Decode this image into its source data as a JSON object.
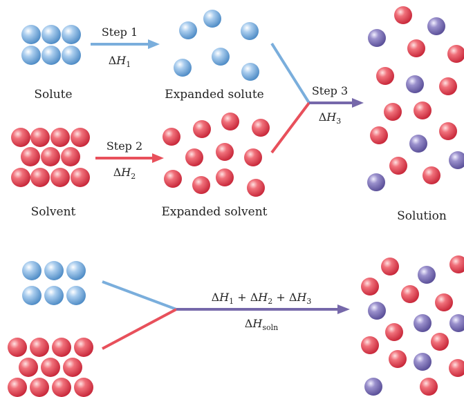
{
  "labels": {
    "solute": "Solute",
    "expanded_solute": "Expanded solute",
    "solvent": "Solvent",
    "expanded_solvent": "Expanded solvent",
    "solution": "Solution"
  },
  "steps": {
    "step1": {
      "label": "Step 1",
      "delta": "Δ",
      "symbol": "H",
      "sub": "1"
    },
    "step2": {
      "label": "Step 2",
      "delta": "Δ",
      "symbol": "H",
      "sub": "2"
    },
    "step3": {
      "label": "Step 3",
      "delta": "Δ",
      "symbol": "H",
      "sub": "3"
    }
  },
  "overall": {
    "sum": {
      "d1": "Δ",
      "h1": "H",
      "s1": "1",
      "plus1": " + ",
      "d2": "Δ",
      "h2": "H",
      "s2": "2",
      "plus2": " + ",
      "d3": "Δ",
      "h3": "H",
      "s3": "3"
    },
    "soln": {
      "delta": "Δ",
      "symbol": "H",
      "sub": "soln"
    }
  },
  "colors": {
    "solute": "#7aaedc",
    "solvent": "#e8505b",
    "solution_arrow": "#7668aa",
    "purple_particle": "#8a80c0"
  }
}
